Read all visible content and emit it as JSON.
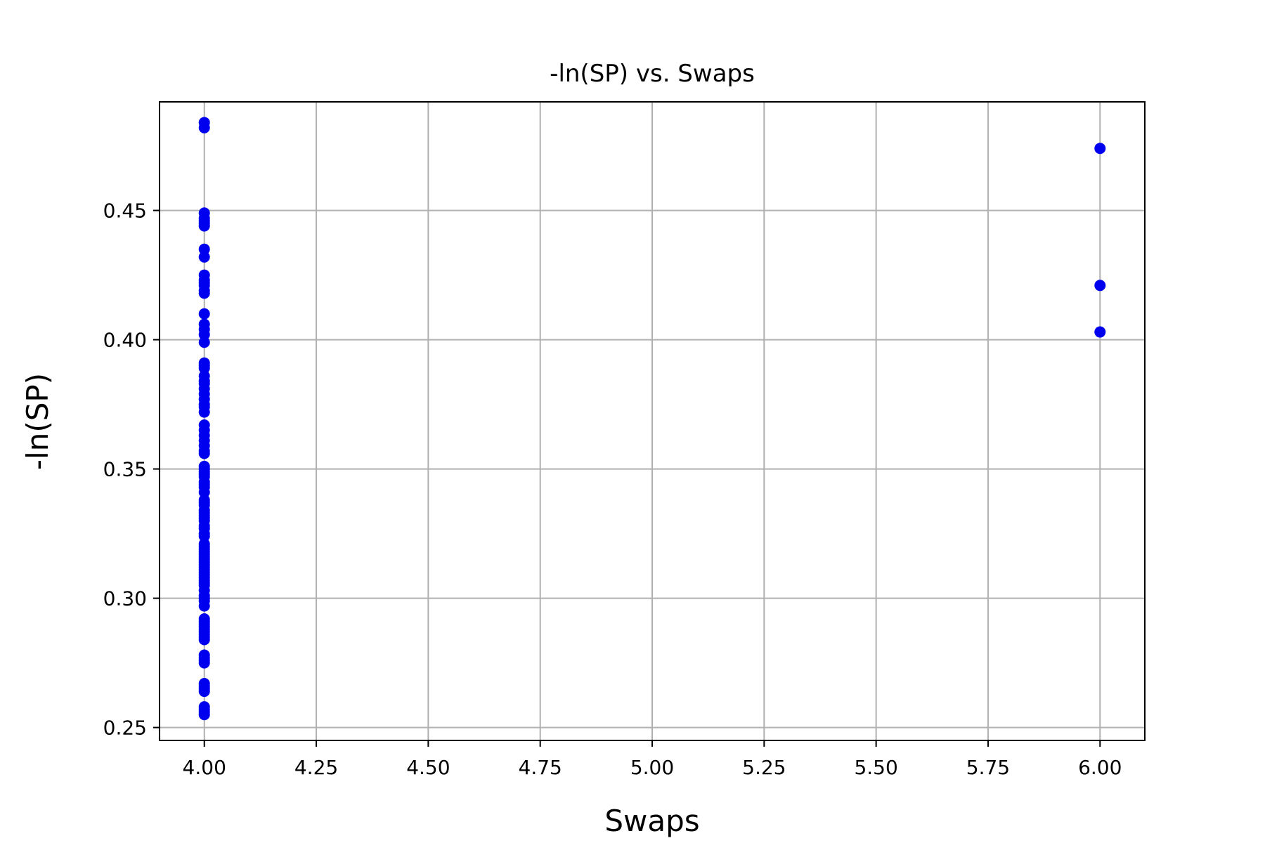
{
  "chart_data": {
    "type": "scatter",
    "title": "-ln(SP) vs. Swaps",
    "xlabel": "Swaps",
    "ylabel": "-ln(SP)",
    "xlim": [
      3.9,
      6.1
    ],
    "ylim": [
      0.245,
      0.492
    ],
    "grid": true,
    "marker_color": "#0000ee",
    "x_ticks": [
      4.0,
      4.25,
      4.5,
      4.75,
      5.0,
      5.25,
      5.5,
      5.75,
      6.0
    ],
    "x_tick_labels": [
      "4.00",
      "4.25",
      "4.50",
      "4.75",
      "5.00",
      "5.25",
      "5.50",
      "5.75",
      "6.00"
    ],
    "y_ticks": [
      0.25,
      0.3,
      0.35,
      0.4,
      0.45
    ],
    "y_tick_labels": [
      "0.25",
      "0.30",
      "0.35",
      "0.40",
      "0.45"
    ],
    "series": [
      {
        "points": [
          [
            4,
            0.484
          ],
          [
            4,
            0.482
          ],
          [
            4,
            0.449
          ],
          [
            4,
            0.447
          ],
          [
            4,
            0.446
          ],
          [
            4,
            0.445
          ],
          [
            4,
            0.444
          ],
          [
            4,
            0.435
          ],
          [
            4,
            0.432
          ],
          [
            4,
            0.425
          ],
          [
            4,
            0.423
          ],
          [
            4,
            0.422
          ],
          [
            4,
            0.421
          ],
          [
            4,
            0.419
          ],
          [
            4,
            0.418
          ],
          [
            4,
            0.41
          ],
          [
            4,
            0.406
          ],
          [
            4,
            0.404
          ],
          [
            4,
            0.402
          ],
          [
            4,
            0.399
          ],
          [
            4,
            0.391
          ],
          [
            4,
            0.39
          ],
          [
            4,
            0.389
          ],
          [
            4,
            0.386
          ],
          [
            4,
            0.384
          ],
          [
            4,
            0.383
          ],
          [
            4,
            0.381
          ],
          [
            4,
            0.379
          ],
          [
            4,
            0.377
          ],
          [
            4,
            0.375
          ],
          [
            4,
            0.374
          ],
          [
            4,
            0.372
          ],
          [
            4,
            0.367
          ],
          [
            4,
            0.365
          ],
          [
            4,
            0.363
          ],
          [
            4,
            0.361
          ],
          [
            4,
            0.359
          ],
          [
            4,
            0.357
          ],
          [
            4,
            0.356
          ],
          [
            4,
            0.351
          ],
          [
            4,
            0.35
          ],
          [
            4,
            0.349
          ],
          [
            4,
            0.348
          ],
          [
            4,
            0.347
          ],
          [
            4,
            0.345
          ],
          [
            4,
            0.344
          ],
          [
            4,
            0.343
          ],
          [
            4,
            0.341
          ],
          [
            4,
            0.338
          ],
          [
            4,
            0.337
          ],
          [
            4,
            0.336
          ],
          [
            4,
            0.334
          ],
          [
            4,
            0.333
          ],
          [
            4,
            0.332
          ],
          [
            4,
            0.331
          ],
          [
            4,
            0.33
          ],
          [
            4,
            0.328
          ],
          [
            4,
            0.327
          ],
          [
            4,
            0.325
          ],
          [
            4,
            0.324
          ],
          [
            4,
            0.321
          ],
          [
            4,
            0.32
          ],
          [
            4,
            0.319
          ],
          [
            4,
            0.318
          ],
          [
            4,
            0.317
          ],
          [
            4,
            0.316
          ],
          [
            4,
            0.315
          ],
          [
            4,
            0.314
          ],
          [
            4,
            0.313
          ],
          [
            4,
            0.312
          ],
          [
            4,
            0.311
          ],
          [
            4,
            0.31
          ],
          [
            4,
            0.309
          ],
          [
            4,
            0.308
          ],
          [
            4,
            0.307
          ],
          [
            4,
            0.306
          ],
          [
            4,
            0.305
          ],
          [
            4,
            0.303
          ],
          [
            4,
            0.301
          ],
          [
            4,
            0.3
          ],
          [
            4,
            0.299
          ],
          [
            4,
            0.297
          ],
          [
            4,
            0.292
          ],
          [
            4,
            0.291
          ],
          [
            4,
            0.29
          ],
          [
            4,
            0.289
          ],
          [
            4,
            0.288
          ],
          [
            4,
            0.287
          ],
          [
            4,
            0.286
          ],
          [
            4,
            0.285
          ],
          [
            4,
            0.284
          ],
          [
            4,
            0.278
          ],
          [
            4,
            0.277
          ],
          [
            4,
            0.276
          ],
          [
            4,
            0.275
          ],
          [
            4,
            0.267
          ],
          [
            4,
            0.266
          ],
          [
            4,
            0.265
          ],
          [
            4,
            0.264
          ],
          [
            4,
            0.258
          ],
          [
            4,
            0.257
          ],
          [
            4,
            0.256
          ],
          [
            4,
            0.255
          ],
          [
            6,
            0.474
          ],
          [
            6,
            0.421
          ],
          [
            6,
            0.403
          ]
        ]
      }
    ]
  }
}
